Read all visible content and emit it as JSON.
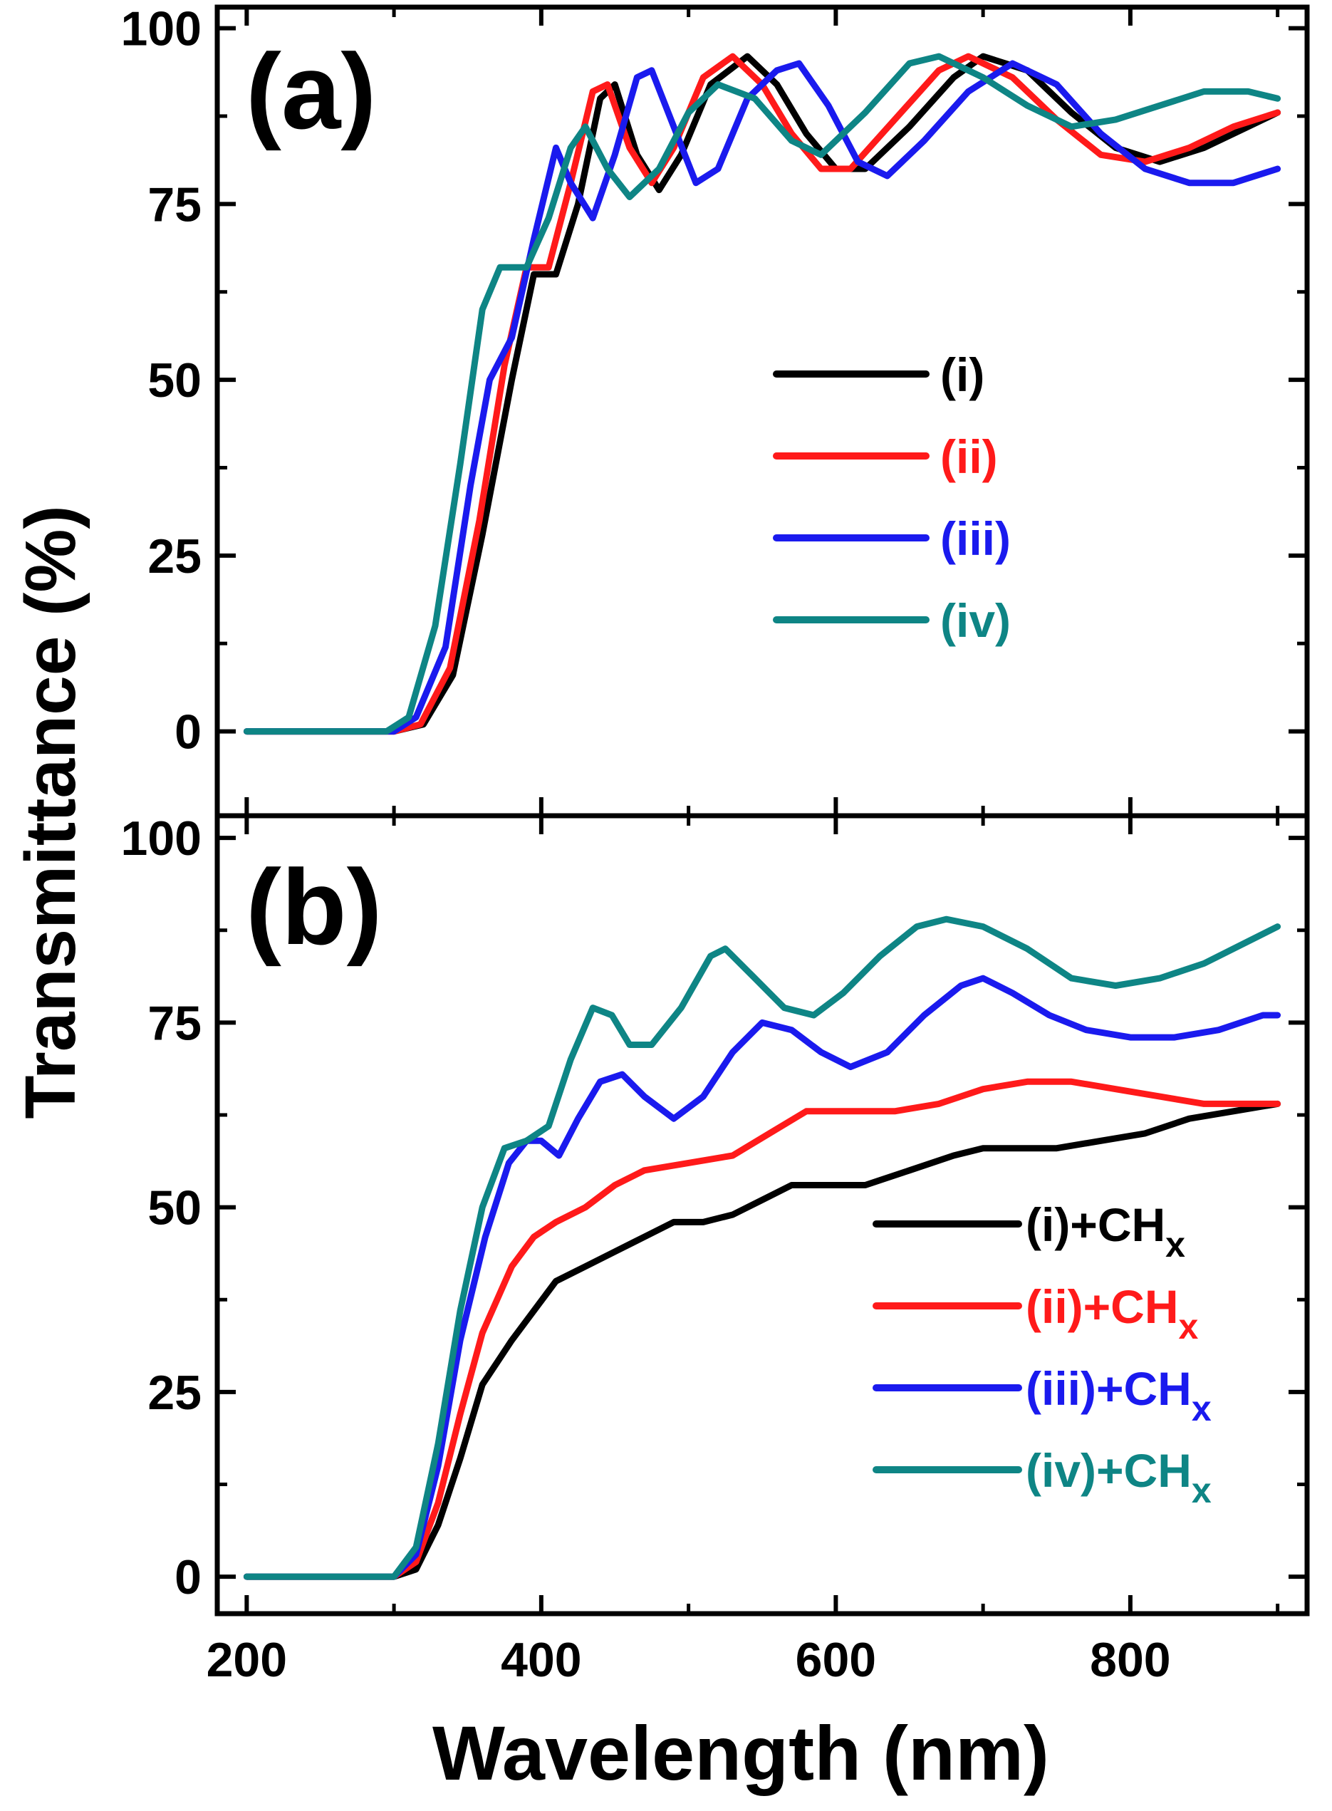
{
  "figure": {
    "ylabel": "Transmittance (%)",
    "xlabel": "Wavelength (nm)"
  },
  "chart_data": [
    {
      "type": "line",
      "panel_label": "(a)",
      "xlim": [
        180,
        920
      ],
      "ylim": [
        -12,
        103
      ],
      "yticks": [
        0,
        25,
        50,
        75,
        100
      ],
      "legend_position": "center-right",
      "series": [
        {
          "name": "(i)",
          "color": "#000000",
          "points": [
            [
              200,
              0
            ],
            [
              300,
              0
            ],
            [
              320,
              1
            ],
            [
              340,
              8
            ],
            [
              360,
              28
            ],
            [
              380,
              50
            ],
            [
              395,
              65
            ],
            [
              410,
              65
            ],
            [
              425,
              75
            ],
            [
              440,
              90
            ],
            [
              450,
              92
            ],
            [
              465,
              82
            ],
            [
              480,
              77
            ],
            [
              495,
              82
            ],
            [
              515,
              92
            ],
            [
              540,
              96
            ],
            [
              560,
              92
            ],
            [
              580,
              85
            ],
            [
              600,
              80
            ],
            [
              620,
              80
            ],
            [
              650,
              86
            ],
            [
              680,
              93
            ],
            [
              700,
              96
            ],
            [
              730,
              94
            ],
            [
              760,
              88
            ],
            [
              790,
              83
            ],
            [
              820,
              81
            ],
            [
              850,
              83
            ],
            [
              880,
              86
            ],
            [
              900,
              88
            ]
          ]
        },
        {
          "name": "(ii)",
          "color": "#ff1a1a",
          "points": [
            [
              200,
              0
            ],
            [
              300,
              0
            ],
            [
              318,
              1
            ],
            [
              338,
              9
            ],
            [
              358,
              30
            ],
            [
              375,
              52
            ],
            [
              390,
              66
            ],
            [
              405,
              66
            ],
            [
              420,
              78
            ],
            [
              435,
              91
            ],
            [
              445,
              92
            ],
            [
              460,
              83
            ],
            [
              475,
              78
            ],
            [
              490,
              83
            ],
            [
              510,
              93
            ],
            [
              530,
              96
            ],
            [
              550,
              92
            ],
            [
              570,
              85
            ],
            [
              590,
              80
            ],
            [
              610,
              80
            ],
            [
              640,
              87
            ],
            [
              670,
              94
            ],
            [
              690,
              96
            ],
            [
              720,
              93
            ],
            [
              750,
              87
            ],
            [
              780,
              82
            ],
            [
              810,
              81
            ],
            [
              840,
              83
            ],
            [
              870,
              86
            ],
            [
              900,
              88
            ]
          ]
        },
        {
          "name": "(iii)",
          "color": "#1a1aee",
          "points": [
            [
              200,
              0
            ],
            [
              300,
              0
            ],
            [
              315,
              2
            ],
            [
              335,
              12
            ],
            [
              352,
              35
            ],
            [
              365,
              50
            ],
            [
              380,
              56
            ],
            [
              395,
              70
            ],
            [
              410,
              83
            ],
            [
              420,
              78
            ],
            [
              435,
              73
            ],
            [
              450,
              82
            ],
            [
              465,
              93
            ],
            [
              475,
              94
            ],
            [
              490,
              86
            ],
            [
              505,
              78
            ],
            [
              520,
              80
            ],
            [
              540,
              90
            ],
            [
              560,
              94
            ],
            [
              575,
              95
            ],
            [
              595,
              89
            ],
            [
              615,
              81
            ],
            [
              635,
              79
            ],
            [
              660,
              84
            ],
            [
              690,
              91
            ],
            [
              720,
              95
            ],
            [
              750,
              92
            ],
            [
              780,
              85
            ],
            [
              810,
              80
            ],
            [
              840,
              78
            ],
            [
              870,
              78
            ],
            [
              900,
              80
            ]
          ]
        },
        {
          "name": "(iv)",
          "color": "#0e8585",
          "points": [
            [
              200,
              0
            ],
            [
              295,
              0
            ],
            [
              310,
              2
            ],
            [
              328,
              15
            ],
            [
              345,
              38
            ],
            [
              360,
              60
            ],
            [
              372,
              66
            ],
            [
              390,
              66
            ],
            [
              405,
              73
            ],
            [
              420,
              83
            ],
            [
              430,
              86
            ],
            [
              445,
              80
            ],
            [
              460,
              76
            ],
            [
              480,
              80
            ],
            [
              500,
              88
            ],
            [
              520,
              92
            ],
            [
              545,
              90
            ],
            [
              570,
              84
            ],
            [
              590,
              82
            ],
            [
              620,
              88
            ],
            [
              650,
              95
            ],
            [
              670,
              96
            ],
            [
              700,
              93
            ],
            [
              730,
              89
            ],
            [
              760,
              86
            ],
            [
              790,
              87
            ],
            [
              820,
              89
            ],
            [
              850,
              91
            ],
            [
              880,
              91
            ],
            [
              900,
              90
            ]
          ]
        }
      ]
    },
    {
      "type": "line",
      "panel_label": "(b)",
      "xlim": [
        180,
        920
      ],
      "ylim": [
        -5,
        103
      ],
      "yticks": [
        0,
        25,
        50,
        75,
        100
      ],
      "xticks": [
        200,
        400,
        600,
        800
      ],
      "legend_position": "bottom-right",
      "series": [
        {
          "name": "(i)+CH",
          "subscript": "x",
          "color": "#000000",
          "points": [
            [
              200,
              0
            ],
            [
              300,
              0
            ],
            [
              315,
              1
            ],
            [
              330,
              7
            ],
            [
              345,
              16
            ],
            [
              360,
              26
            ],
            [
              380,
              32
            ],
            [
              395,
              36
            ],
            [
              410,
              40
            ],
            [
              430,
              42
            ],
            [
              450,
              44
            ],
            [
              470,
              46
            ],
            [
              490,
              48
            ],
            [
              510,
              48
            ],
            [
              530,
              49
            ],
            [
              550,
              51
            ],
            [
              570,
              53
            ],
            [
              600,
              53
            ],
            [
              620,
              53
            ],
            [
              650,
              55
            ],
            [
              680,
              57
            ],
            [
              700,
              58
            ],
            [
              720,
              58
            ],
            [
              750,
              58
            ],
            [
              780,
              59
            ],
            [
              810,
              60
            ],
            [
              840,
              62
            ],
            [
              870,
              63
            ],
            [
              900,
              64
            ]
          ]
        },
        {
          "name": "(ii)+CH",
          "subscript": "x",
          "color": "#ff1a1a",
          "points": [
            [
              200,
              0
            ],
            [
              300,
              0
            ],
            [
              315,
              2
            ],
            [
              330,
              10
            ],
            [
              345,
              22
            ],
            [
              360,
              33
            ],
            [
              380,
              42
            ],
            [
              395,
              46
            ],
            [
              410,
              48
            ],
            [
              430,
              50
            ],
            [
              450,
              53
            ],
            [
              470,
              55
            ],
            [
              500,
              56
            ],
            [
              530,
              57
            ],
            [
              555,
              60
            ],
            [
              580,
              63
            ],
            [
              610,
              63
            ],
            [
              640,
              63
            ],
            [
              670,
              64
            ],
            [
              700,
              66
            ],
            [
              730,
              67
            ],
            [
              760,
              67
            ],
            [
              790,
              66
            ],
            [
              820,
              65
            ],
            [
              850,
              64
            ],
            [
              880,
              64
            ],
            [
              900,
              64
            ]
          ]
        },
        {
          "name": "(iii)+CH",
          "subscript": "x",
          "color": "#1a1aee",
          "points": [
            [
              200,
              0
            ],
            [
              300,
              0
            ],
            [
              315,
              3
            ],
            [
              330,
              15
            ],
            [
              345,
              32
            ],
            [
              362,
              46
            ],
            [
              378,
              56
            ],
            [
              390,
              59
            ],
            [
              400,
              59
            ],
            [
              412,
              57
            ],
            [
              425,
              62
            ],
            [
              440,
              67
            ],
            [
              455,
              68
            ],
            [
              470,
              65
            ],
            [
              490,
              62
            ],
            [
              510,
              65
            ],
            [
              530,
              71
            ],
            [
              550,
              75
            ],
            [
              570,
              74
            ],
            [
              590,
              71
            ],
            [
              610,
              69
            ],
            [
              635,
              71
            ],
            [
              660,
              76
            ],
            [
              685,
              80
            ],
            [
              700,
              81
            ],
            [
              720,
              79
            ],
            [
              745,
              76
            ],
            [
              770,
              74
            ],
            [
              800,
              73
            ],
            [
              830,
              73
            ],
            [
              860,
              74
            ],
            [
              890,
              76
            ],
            [
              900,
              76
            ]
          ]
        },
        {
          "name": "(iv)+CH",
          "subscript": "x",
          "color": "#0e8585",
          "points": [
            [
              200,
              0
            ],
            [
              300,
              0
            ],
            [
              315,
              4
            ],
            [
              330,
              18
            ],
            [
              345,
              36
            ],
            [
              360,
              50
            ],
            [
              375,
              58
            ],
            [
              390,
              59
            ],
            [
              405,
              61
            ],
            [
              420,
              70
            ],
            [
              435,
              77
            ],
            [
              448,
              76
            ],
            [
              460,
              72
            ],
            [
              475,
              72
            ],
            [
              495,
              77
            ],
            [
              515,
              84
            ],
            [
              525,
              85
            ],
            [
              545,
              81
            ],
            [
              565,
              77
            ],
            [
              585,
              76
            ],
            [
              605,
              79
            ],
            [
              630,
              84
            ],
            [
              655,
              88
            ],
            [
              675,
              89
            ],
            [
              700,
              88
            ],
            [
              730,
              85
            ],
            [
              760,
              81
            ],
            [
              790,
              80
            ],
            [
              820,
              81
            ],
            [
              850,
              83
            ],
            [
              880,
              86
            ],
            [
              900,
              88
            ]
          ]
        }
      ]
    }
  ]
}
